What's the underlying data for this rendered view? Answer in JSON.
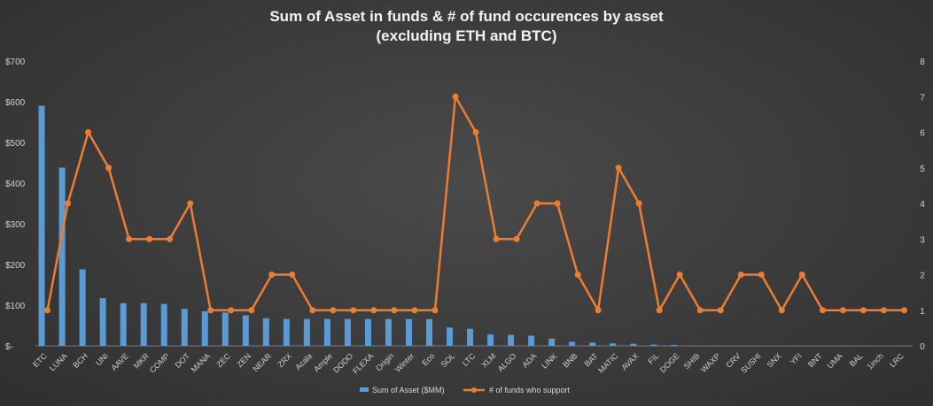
{
  "chart_data": {
    "type": "bar+line",
    "title_line1": "Sum of Asset in funds & # of fund occurences by asset",
    "title_line2": "(excluding ETH and BTC)",
    "categories": [
      "ETC",
      "LUNA",
      "BCH",
      "UNI",
      "AAVE",
      "MKR",
      "COMP",
      "DOT",
      "MANA",
      "ZEC",
      "ZEN",
      "NEAR",
      "ZRX",
      "Acala",
      "Ample",
      "DODO",
      "FLEXA",
      "Origin",
      "Winter",
      "Eco",
      "SOL",
      "LTC",
      "XLM",
      "ALGO",
      "ADA",
      "LINK",
      "BNB",
      "BAT",
      "MATIC",
      "AVAX",
      "FIL",
      "DOGE",
      "SHIB",
      "WAXP",
      "CRV",
      "SUSHI",
      "SNX",
      "YFI",
      "BNT",
      "UMA",
      "BAL",
      "1inch",
      "LRC"
    ],
    "series": [
      {
        "name": "Sum of Asset ($MM)",
        "kind": "bar",
        "axis": "left",
        "color": "#5b9bd5",
        "values": [
          590,
          438,
          188,
          117,
          105,
          105,
          103,
          91,
          85,
          82,
          75,
          68,
          66,
          66,
          66,
          66,
          66,
          66,
          66,
          66,
          45,
          42,
          28,
          27,
          25,
          18,
          10,
          8,
          6,
          5,
          3,
          2,
          1,
          1,
          0,
          0,
          0,
          0,
          0,
          0,
          0,
          0,
          0
        ]
      },
      {
        "name": "# of funds who support",
        "kind": "line",
        "axis": "right",
        "color": "#ed7d31",
        "values": [
          1,
          4,
          6,
          5,
          3,
          3,
          3,
          4,
          1,
          1,
          1,
          2,
          2,
          1,
          1,
          1,
          1,
          1,
          1,
          1,
          7,
          6,
          3,
          3,
          4,
          4,
          2,
          1,
          5,
          4,
          1,
          2,
          1,
          1,
          2,
          2,
          1,
          2,
          1,
          1,
          1,
          1,
          1
        ]
      }
    ],
    "y_left": {
      "min": 0,
      "max": 700,
      "ticks": [
        "$-",
        "$100",
        "$200",
        "$300",
        "$400",
        "$500",
        "$600",
        "$700"
      ]
    },
    "y_right": {
      "min": 0,
      "max": 8,
      "ticks": [
        "0",
        "1",
        "2",
        "3",
        "4",
        "5",
        "6",
        "7",
        "8"
      ]
    },
    "grid": false,
    "legend_position": "bottom"
  }
}
